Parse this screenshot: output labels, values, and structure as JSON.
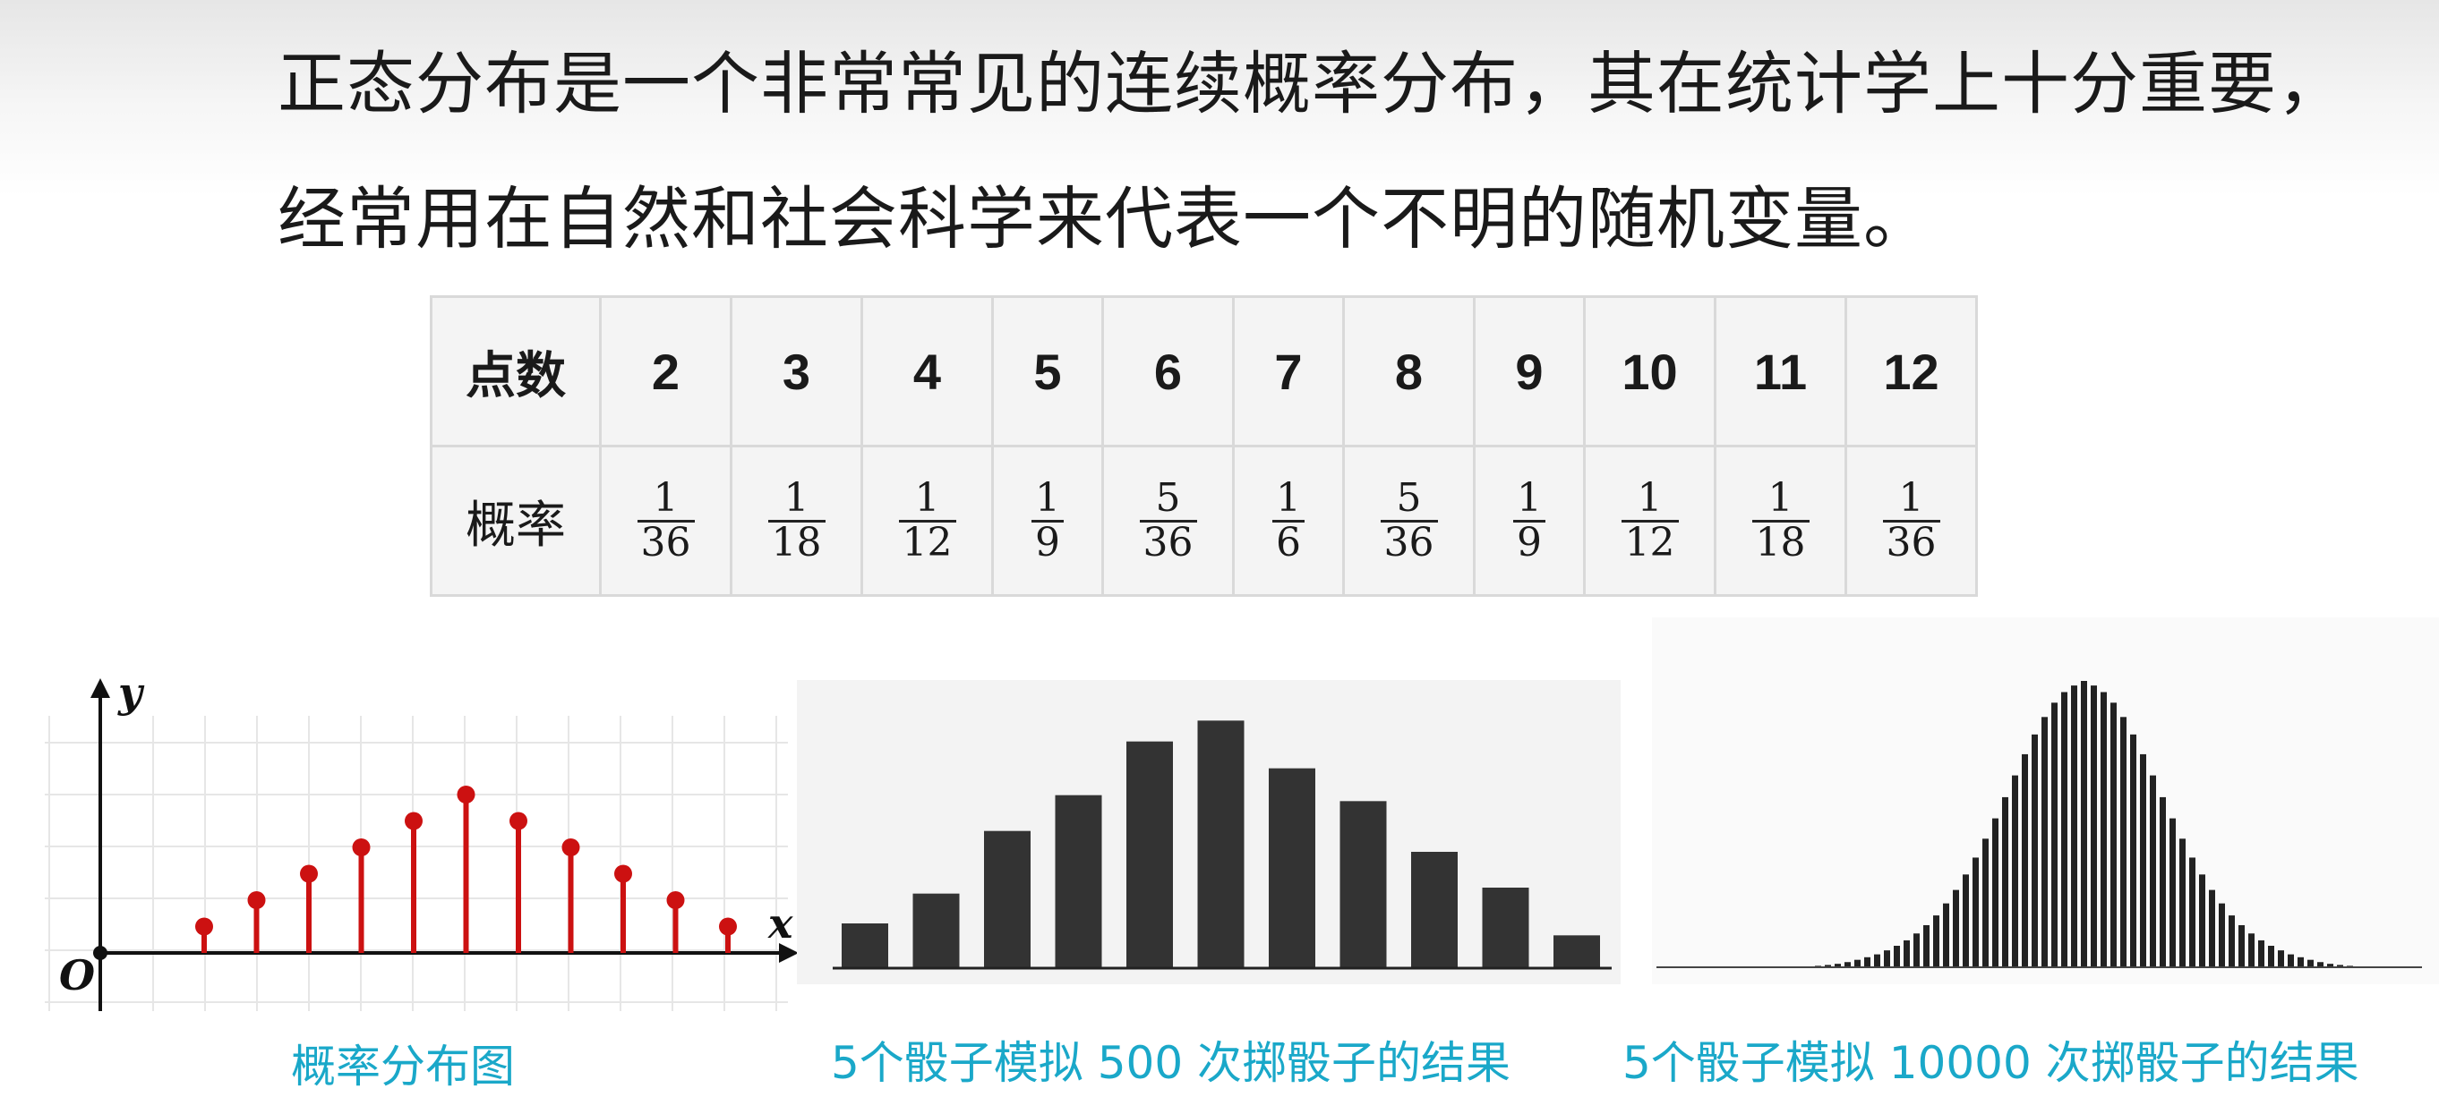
{
  "intro": {
    "line1": "正态分布是一个非常常见的连续概率分布，其在统计学上十分重要，",
    "line2": "经常用在自然和社会科学来代表一个不明的随机变量。"
  },
  "table": {
    "row1_label": "点数",
    "row2_label": "概率",
    "points": [
      "2",
      "3",
      "4",
      "5",
      "6",
      "7",
      "8",
      "9",
      "10",
      "11",
      "12"
    ],
    "probabilities": [
      {
        "num": "1",
        "den": "36"
      },
      {
        "num": "1",
        "den": "18"
      },
      {
        "num": "1",
        "den": "12"
      },
      {
        "num": "1",
        "den": "9"
      },
      {
        "num": "5",
        "den": "36"
      },
      {
        "num": "1",
        "den": "6"
      },
      {
        "num": "5",
        "den": "36"
      },
      {
        "num": "1",
        "den": "9"
      },
      {
        "num": "1",
        "den": "12"
      },
      {
        "num": "1",
        "den": "18"
      },
      {
        "num": "1",
        "den": "36"
      }
    ]
  },
  "captions": {
    "stem": "概率分布图",
    "hist500": "5个骰子模拟 500 次掷骰子的结果",
    "hist10k": "5个骰子模拟 10000 次掷骰子的结果"
  },
  "chart_data": [
    {
      "type": "stem",
      "x": [
        2,
        3,
        4,
        5,
        6,
        7,
        8,
        9,
        10,
        11,
        12
      ],
      "values": [
        1,
        2,
        3,
        4,
        5,
        6,
        5,
        4,
        3,
        2,
        1
      ],
      "xlabel": "x",
      "ylabel": "y",
      "origin_label": "O",
      "grid": true,
      "color": "#cc1111"
    },
    {
      "type": "bar",
      "values": [
        15,
        25,
        46,
        58,
        76,
        83,
        67,
        56,
        39,
        27,
        11
      ],
      "color": "#333333"
    },
    {
      "type": "bar",
      "values": [
        0.2,
        0.3,
        0.5,
        0.8,
        1.2,
        1.8,
        2.6,
        3.5,
        4.5,
        5.9,
        7.5,
        9.4,
        11.8,
        14.7,
        18.1,
        22.3,
        27.0,
        32.4,
        38.3,
        44.9,
        52.0,
        59.4,
        67.0,
        74.4,
        81.3,
        87.4,
        92.4,
        96.1,
        98.4,
        100,
        98.4,
        96.1,
        92.4,
        87.4,
        81.3,
        74.4,
        67.0,
        59.4,
        52.0,
        44.9,
        38.3,
        32.4,
        27.0,
        22.3,
        18.1,
        14.7,
        11.8,
        9.4,
        7.5,
        5.9,
        4.5,
        3.5,
        2.6,
        1.8,
        1.2,
        0.8,
        0.5,
        0.3,
        0.2
      ],
      "color": "#222222"
    }
  ]
}
